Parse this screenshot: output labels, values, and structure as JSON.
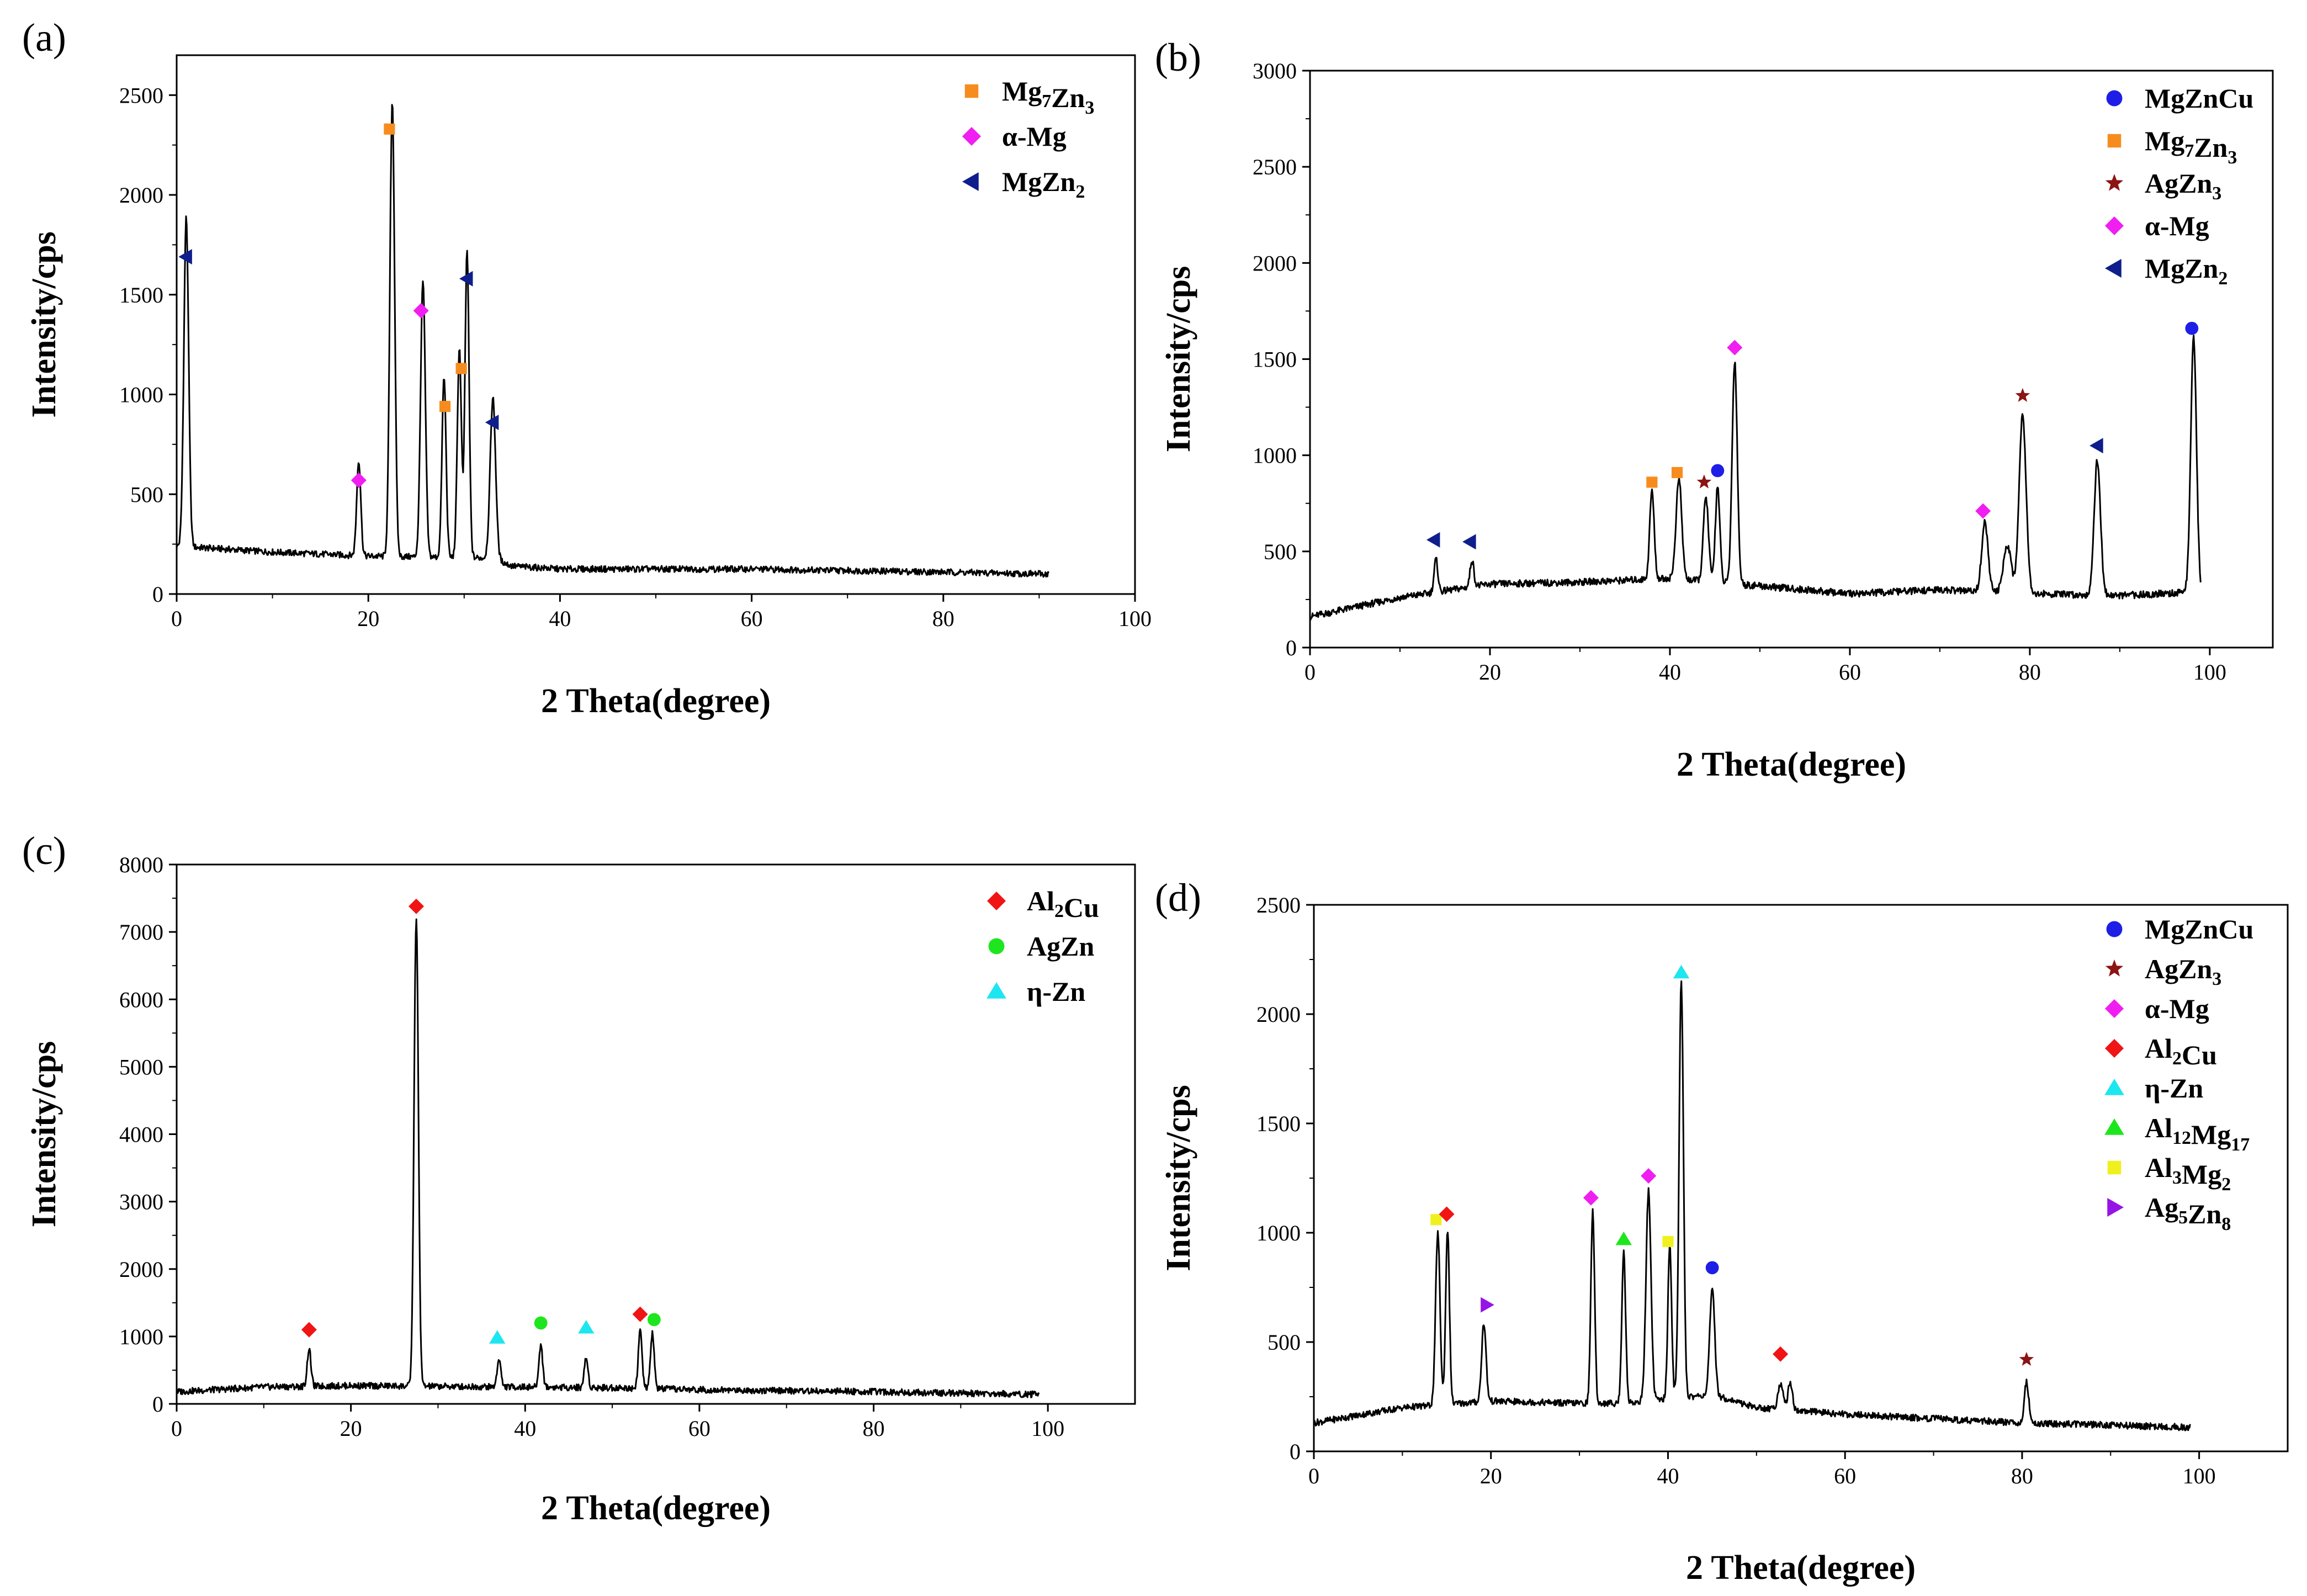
{
  "chart_data": [
    {
      "panel_label": "(a)",
      "type": "line",
      "xlabel": "2 Theta(degree)",
      "ylabel": "Intensity/cps",
      "xlim": [
        0,
        100
      ],
      "ylim": [
        0,
        2700
      ],
      "xticks": [
        0,
        20,
        40,
        60,
        80,
        100
      ],
      "yticks": [
        0,
        500,
        1000,
        1500,
        2000,
        2500
      ],
      "legend_position": "top-right",
      "legend": [
        {
          "phase": "Mg7Zn3",
          "label": "Mg",
          "sub1": "7",
          "mid": "Zn",
          "sub2": "3",
          "tail": "",
          "marker": "square",
          "color": "#f78c1e"
        },
        {
          "phase": "a-Mg",
          "label": "α-Mg",
          "sub1": "",
          "mid": "",
          "sub2": "",
          "tail": "",
          "marker": "diamond",
          "color": "#f01ef0"
        },
        {
          "phase": "MgZn2",
          "label": "MgZn",
          "sub1": "2",
          "mid": "",
          "sub2": "",
          "tail": "",
          "marker": "tri-left",
          "color": "#0e1e8c"
        }
      ],
      "baseline": [
        [
          0,
          240
        ],
        [
          10,
          210
        ],
        [
          20,
          190
        ],
        [
          33,
          180
        ],
        [
          35,
          140
        ],
        [
          40,
          125
        ],
        [
          60,
          125
        ],
        [
          80,
          110
        ],
        [
          91,
          100
        ]
      ],
      "peaks": [
        {
          "x": 1.0,
          "y": 1650,
          "w": 0.35
        },
        {
          "x": 19.0,
          "y": 480,
          "w": 0.3
        },
        {
          "x": 22.5,
          "y": 2280,
          "w": 0.35
        },
        {
          "x": 25.7,
          "y": 1380,
          "w": 0.35
        },
        {
          "x": 27.9,
          "y": 900,
          "w": 0.3
        },
        {
          "x": 29.5,
          "y": 1050,
          "w": 0.3
        },
        {
          "x": 30.3,
          "y": 1540,
          "w": 0.3
        },
        {
          "x": 33.0,
          "y": 800,
          "w": 0.4
        }
      ],
      "markers": [
        {
          "x": 1.0,
          "y": 1690,
          "phase": "MgZn2"
        },
        {
          "x": 19.0,
          "y": 570,
          "phase": "a-Mg"
        },
        {
          "x": 22.2,
          "y": 2330,
          "phase": "Mg7Zn3"
        },
        {
          "x": 25.5,
          "y": 1420,
          "phase": "a-Mg"
        },
        {
          "x": 28.0,
          "y": 940,
          "phase": "Mg7Zn3"
        },
        {
          "x": 29.7,
          "y": 1130,
          "phase": "Mg7Zn3"
        },
        {
          "x": 30.3,
          "y": 1580,
          "phase": "MgZn2"
        },
        {
          "x": 33.0,
          "y": 860,
          "phase": "MgZn2"
        }
      ]
    },
    {
      "panel_label": "(b)",
      "type": "line",
      "xlabel": "2 Theta(degree)",
      "ylabel": "Intensity/cps",
      "xlim": [
        0,
        107
      ],
      "ylim": [
        0,
        3000
      ],
      "xticks": [
        0,
        20,
        40,
        60,
        80,
        100
      ],
      "yticks": [
        0,
        500,
        1000,
        1500,
        2000,
        2500,
        3000
      ],
      "legend_position": "top-right",
      "legend": [
        {
          "phase": "MgZnCu",
          "label": "MgZnCu",
          "sub1": "",
          "mid": "",
          "sub2": "",
          "tail": "",
          "marker": "circle",
          "color": "#1e1ee6"
        },
        {
          "phase": "Mg7Zn3",
          "label": "Mg",
          "sub1": "7",
          "mid": "Zn",
          "sub2": "3",
          "tail": "",
          "marker": "square",
          "color": "#f78c1e"
        },
        {
          "phase": "AgZn3",
          "label": "AgZn",
          "sub1": "3",
          "mid": "",
          "sub2": "",
          "tail": "",
          "marker": "star",
          "color": "#8c1414"
        },
        {
          "phase": "a-Mg",
          "label": "α-Mg",
          "sub1": "",
          "mid": "",
          "sub2": "",
          "tail": "",
          "marker": "diamond",
          "color": "#f01ef0"
        },
        {
          "phase": "MgZn2",
          "label": "MgZn",
          "sub1": "2",
          "mid": "",
          "sub2": "",
          "tail": "",
          "marker": "tri-left",
          "color": "#0e1e8c"
        }
      ],
      "baseline": [
        [
          0,
          160
        ],
        [
          10,
          260
        ],
        [
          20,
          330
        ],
        [
          30,
          340
        ],
        [
          40,
          360
        ],
        [
          50,
          320
        ],
        [
          60,
          280
        ],
        [
          70,
          300
        ],
        [
          80,
          280
        ],
        [
          90,
          270
        ],
        [
          99,
          290
        ]
      ],
      "peaks": [
        {
          "x": 14.0,
          "y": 170,
          "w": 0.3
        },
        {
          "x": 18.0,
          "y": 140,
          "w": 0.3
        },
        {
          "x": 38.0,
          "y": 460,
          "w": 0.35
        },
        {
          "x": 41.0,
          "y": 520,
          "w": 0.45
        },
        {
          "x": 44.0,
          "y": 440,
          "w": 0.4
        },
        {
          "x": 45.3,
          "y": 500,
          "w": 0.35
        },
        {
          "x": 47.2,
          "y": 1160,
          "w": 0.4
        },
        {
          "x": 75.0,
          "y": 360,
          "w": 0.5
        },
        {
          "x": 77.5,
          "y": 250,
          "w": 0.6
        },
        {
          "x": 79.2,
          "y": 930,
          "w": 0.55
        },
        {
          "x": 87.5,
          "y": 700,
          "w": 0.5
        },
        {
          "x": 98.2,
          "y": 1320,
          "w": 0.45
        }
      ],
      "markers": [
        {
          "x": 13.8,
          "y": 560,
          "phase": "MgZn2"
        },
        {
          "x": 17.8,
          "y": 550,
          "phase": "MgZn2"
        },
        {
          "x": 38.0,
          "y": 860,
          "phase": "Mg7Zn3"
        },
        {
          "x": 40.8,
          "y": 910,
          "phase": "Mg7Zn3"
        },
        {
          "x": 43.8,
          "y": 860,
          "phase": "AgZn3"
        },
        {
          "x": 45.3,
          "y": 920,
          "phase": "MgZnCu"
        },
        {
          "x": 47.2,
          "y": 1560,
          "phase": "a-Mg"
        },
        {
          "x": 74.8,
          "y": 710,
          "phase": "a-Mg"
        },
        {
          "x": 79.2,
          "y": 1310,
          "phase": "AgZn3"
        },
        {
          "x": 87.5,
          "y": 1050,
          "phase": "MgZn2"
        },
        {
          "x": 98.0,
          "y": 1660,
          "phase": "MgZnCu"
        }
      ]
    },
    {
      "panel_label": "(c)",
      "type": "line",
      "xlabel": "2 Theta(degree)",
      "ylabel": "Intensity/cps",
      "xlim": [
        0,
        110
      ],
      "ylim": [
        0,
        8000
      ],
      "xticks": [
        0,
        20,
        40,
        60,
        80,
        100
      ],
      "yticks": [
        0,
        1000,
        2000,
        3000,
        4000,
        5000,
        6000,
        7000,
        8000
      ],
      "legend_position": "top-right",
      "legend": [
        {
          "phase": "Al2Cu",
          "label": "Al",
          "sub1": "2",
          "mid": "Cu",
          "sub2": "",
          "tail": "",
          "marker": "diamond",
          "color": "#f01414"
        },
        {
          "phase": "AgZn",
          "label": "AgZn",
          "sub1": "",
          "mid": "",
          "sub2": "",
          "tail": "",
          "marker": "circle",
          "color": "#1ee61e"
        },
        {
          "phase": "n-Zn",
          "label": "η-Zn",
          "sub1": "",
          "mid": "",
          "sub2": "",
          "tail": "",
          "marker": "triangle",
          "color": "#1ee6f0"
        }
      ],
      "baseline": [
        [
          0,
          180
        ],
        [
          10,
          250
        ],
        [
          20,
          270
        ],
        [
          30,
          260
        ],
        [
          50,
          240
        ],
        [
          60,
          210
        ],
        [
          80,
          180
        ],
        [
          99,
          140
        ]
      ],
      "peaks": [
        {
          "x": 15.2,
          "y": 560,
          "w": 0.3
        },
        {
          "x": 27.5,
          "y": 6950,
          "w": 0.35
        },
        {
          "x": 37.0,
          "y": 420,
          "w": 0.3
        },
        {
          "x": 41.8,
          "y": 630,
          "w": 0.3
        },
        {
          "x": 47.0,
          "y": 440,
          "w": 0.3
        },
        {
          "x": 53.2,
          "y": 860,
          "w": 0.3
        },
        {
          "x": 54.6,
          "y": 820,
          "w": 0.3
        }
      ],
      "markers": [
        {
          "x": 15.2,
          "y": 1100,
          "phase": "Al2Cu"
        },
        {
          "x": 27.5,
          "y": 7380,
          "phase": "Al2Cu"
        },
        {
          "x": 36.8,
          "y": 980,
          "phase": "n-Zn"
        },
        {
          "x": 41.8,
          "y": 1200,
          "phase": "AgZn"
        },
        {
          "x": 47.0,
          "y": 1130,
          "phase": "n-Zn"
        },
        {
          "x": 53.2,
          "y": 1330,
          "phase": "Al2Cu"
        },
        {
          "x": 54.8,
          "y": 1250,
          "phase": "AgZn"
        }
      ]
    },
    {
      "panel_label": "(d)",
      "type": "line",
      "xlabel": "2 Theta(degree)",
      "ylabel": "Intensity/cps",
      "xlim": [
        0,
        110
      ],
      "ylim": [
        0,
        2500
      ],
      "xticks": [
        0,
        20,
        40,
        60,
        80,
        100
      ],
      "yticks": [
        0,
        500,
        1000,
        1500,
        2000,
        2500
      ],
      "legend_position": "top-right",
      "legend": [
        {
          "phase": "MgZnCu",
          "label": "MgZnCu",
          "sub1": "",
          "mid": "",
          "sub2": "",
          "tail": "",
          "marker": "circle",
          "color": "#1e1ee6"
        },
        {
          "phase": "AgZn3",
          "label": "AgZn",
          "sub1": "3",
          "mid": "",
          "sub2": "",
          "tail": "",
          "marker": "star",
          "color": "#8c1414"
        },
        {
          "phase": "a-Mg",
          "label": "α-Mg",
          "sub1": "",
          "mid": "",
          "sub2": "",
          "tail": "",
          "marker": "diamond",
          "color": "#f01ef0"
        },
        {
          "phase": "Al2Cu",
          "label": "Al",
          "sub1": "2",
          "mid": "Cu",
          "sub2": "",
          "tail": "",
          "marker": "diamond",
          "color": "#f01414"
        },
        {
          "phase": "n-Zn",
          "label": "η-Zn",
          "sub1": "",
          "mid": "",
          "sub2": "",
          "tail": "",
          "marker": "triangle",
          "color": "#1ee6f0"
        },
        {
          "phase": "Al12Mg17",
          "label": "Al",
          "sub1": "12",
          "mid": "Mg",
          "sub2": "17",
          "tail": "",
          "marker": "triangle",
          "color": "#1ee61e"
        },
        {
          "phase": "Al3Mg2",
          "label": "Al",
          "sub1": "3",
          "mid": "Mg",
          "sub2": "2",
          "tail": "",
          "marker": "square",
          "color": "#f0f01e"
        },
        {
          "phase": "Ag5Zn8",
          "label": "Ag",
          "sub1": "5",
          "mid": "Zn",
          "sub2": "8",
          "tail": "",
          "marker": "tri-right",
          "color": "#9614e6"
        }
      ],
      "baseline": [
        [
          0,
          130
        ],
        [
          10,
          200
        ],
        [
          20,
          230
        ],
        [
          30,
          220
        ],
        [
          35,
          220
        ],
        [
          45,
          260
        ],
        [
          50,
          200
        ],
        [
          60,
          170
        ],
        [
          70,
          150
        ],
        [
          80,
          130
        ],
        [
          90,
          120
        ],
        [
          99,
          110
        ]
      ],
      "peaks": [
        {
          "x": 14.0,
          "y": 790,
          "w": 0.35
        },
        {
          "x": 15.1,
          "y": 800,
          "w": 0.3
        },
        {
          "x": 19.2,
          "y": 360,
          "w": 0.35
        },
        {
          "x": 31.5,
          "y": 880,
          "w": 0.3
        },
        {
          "x": 35.0,
          "y": 700,
          "w": 0.3
        },
        {
          "x": 37.8,
          "y": 960,
          "w": 0.4
        },
        {
          "x": 40.2,
          "y": 700,
          "w": 0.3
        },
        {
          "x": 41.5,
          "y": 1900,
          "w": 0.35
        },
        {
          "x": 45.0,
          "y": 480,
          "w": 0.4
        },
        {
          "x": 52.7,
          "y": 120,
          "w": 0.4
        },
        {
          "x": 53.8,
          "y": 130,
          "w": 0.35
        },
        {
          "x": 80.5,
          "y": 190,
          "w": 0.35
        }
      ],
      "markers": [
        {
          "x": 13.8,
          "y": 1060,
          "phase": "Al3Mg2"
        },
        {
          "x": 15.0,
          "y": 1085,
          "phase": "Al2Cu"
        },
        {
          "x": 19.5,
          "y": 670,
          "phase": "Ag5Zn8"
        },
        {
          "x": 31.3,
          "y": 1160,
          "phase": "a-Mg"
        },
        {
          "x": 35.0,
          "y": 970,
          "phase": "Al12Mg17"
        },
        {
          "x": 37.8,
          "y": 1260,
          "phase": "a-Mg"
        },
        {
          "x": 40.0,
          "y": 960,
          "phase": "Al3Mg2"
        },
        {
          "x": 41.5,
          "y": 2190,
          "phase": "n-Zn"
        },
        {
          "x": 45.0,
          "y": 840,
          "phase": "MgZnCu"
        },
        {
          "x": 52.7,
          "y": 445,
          "phase": "Al2Cu"
        },
        {
          "x": 80.5,
          "y": 420,
          "phase": "AgZn3"
        }
      ]
    }
  ]
}
